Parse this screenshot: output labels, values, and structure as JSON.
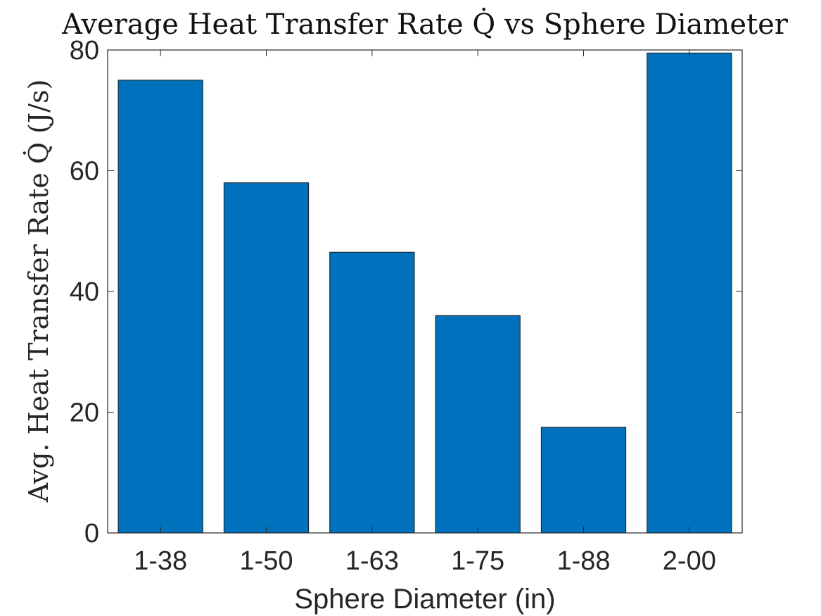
{
  "chart_data": {
    "type": "bar",
    "title": "Average Heat Transfer Rate Q̇ vs Sphere Diameter",
    "xlabel": "Sphere Diameter (in)",
    "ylabel": "Avg. Heat Transfer Rate Q̇ (J/s)",
    "categories": [
      "1-38",
      "1-50",
      "1-63",
      "1-75",
      "1-88",
      "2-00"
    ],
    "values": [
      75,
      58,
      46.5,
      36,
      17.5,
      79.5
    ],
    "ylim": [
      0,
      80
    ],
    "yticks": [
      0,
      20,
      40,
      60,
      80
    ],
    "grid": false,
    "legend": "none",
    "bar_color": "#0072BD",
    "edge_color": "#1a1a1a"
  }
}
